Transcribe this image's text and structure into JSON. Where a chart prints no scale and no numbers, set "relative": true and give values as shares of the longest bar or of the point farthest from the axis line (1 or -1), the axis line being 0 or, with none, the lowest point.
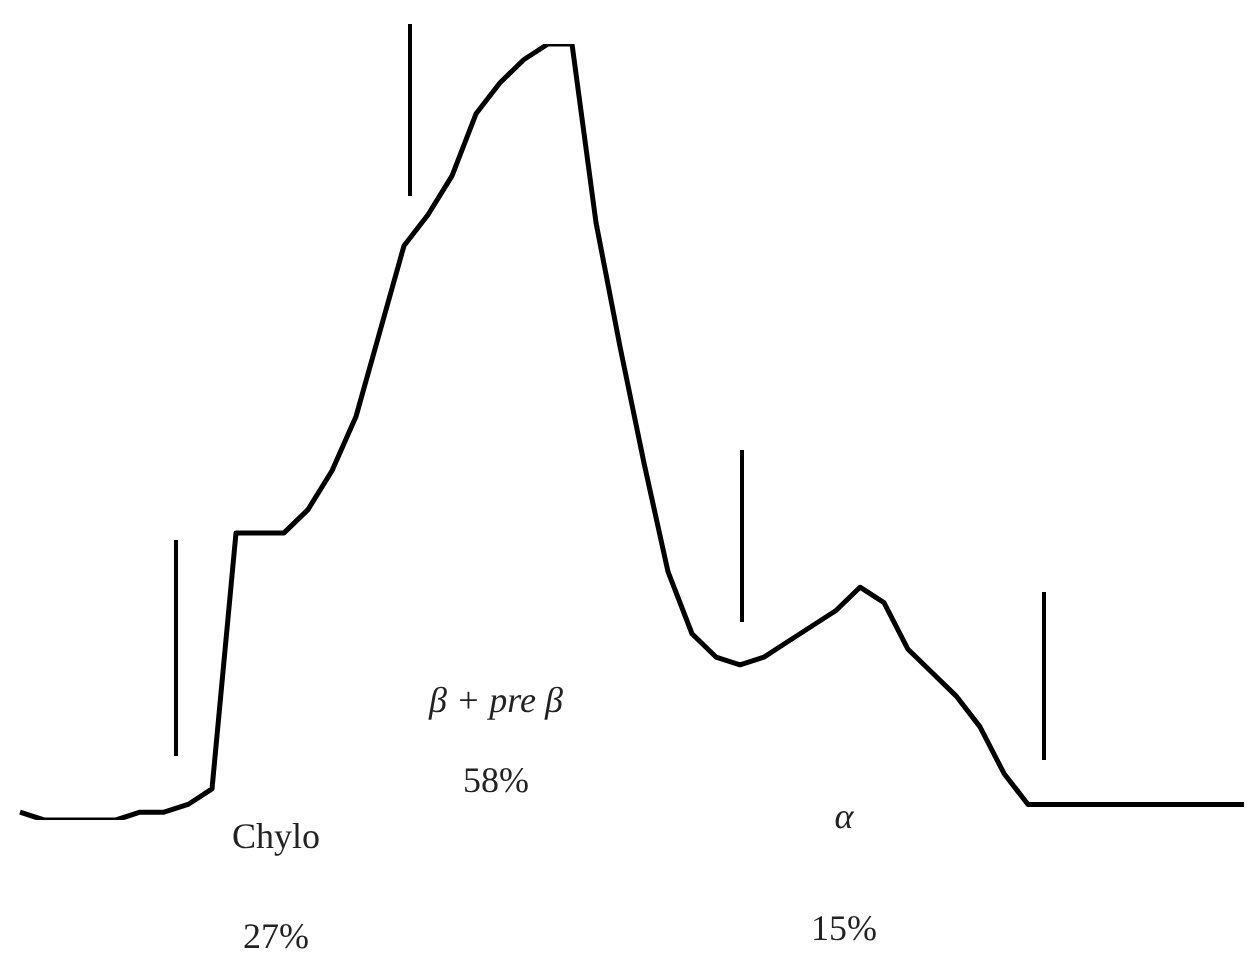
{
  "chart_data": {
    "type": "line",
    "relative": true,
    "color": "#000000",
    "marker": "none",
    "line_style": "solid",
    "legend": false,
    "categories": [
      null,
      null,
      null,
      null,
      null,
      null,
      null,
      null,
      null,
      null,
      null,
      null,
      null,
      null,
      null,
      null,
      null,
      null,
      null,
      null,
      null,
      null,
      null,
      null,
      null,
      null,
      null,
      null,
      null,
      null,
      null,
      null,
      null,
      null,
      null,
      null,
      null,
      null,
      null,
      null,
      null,
      null,
      null,
      null,
      null,
      null,
      null,
      null,
      null,
      null,
      null,
      null
    ],
    "values": [
      0.01,
      0,
      0,
      0,
      0,
      0.01,
      0.01,
      0.02,
      0.04,
      0.37,
      0.37,
      0.37,
      0.4,
      0.45,
      0.52,
      0.63,
      0.74,
      0.78,
      0.83,
      0.91,
      0.95,
      0.98,
      1,
      1,
      0.77,
      0.61,
      0.46,
      0.32,
      0.24,
      0.21,
      0.2,
      0.21,
      0.23,
      0.25,
      0.27,
      0.3,
      0.28,
      0.22,
      0.19,
      0.16,
      0.12,
      0.06,
      0.02,
      0.02,
      0.02,
      0.02,
      0.02,
      0.02,
      0.02,
      0.02,
      0.02,
      0.02
    ],
    "annotations": [
      "Chylo",
      "27%",
      "β + pre β",
      "58%",
      "α",
      "15%"
    ]
  }
}
